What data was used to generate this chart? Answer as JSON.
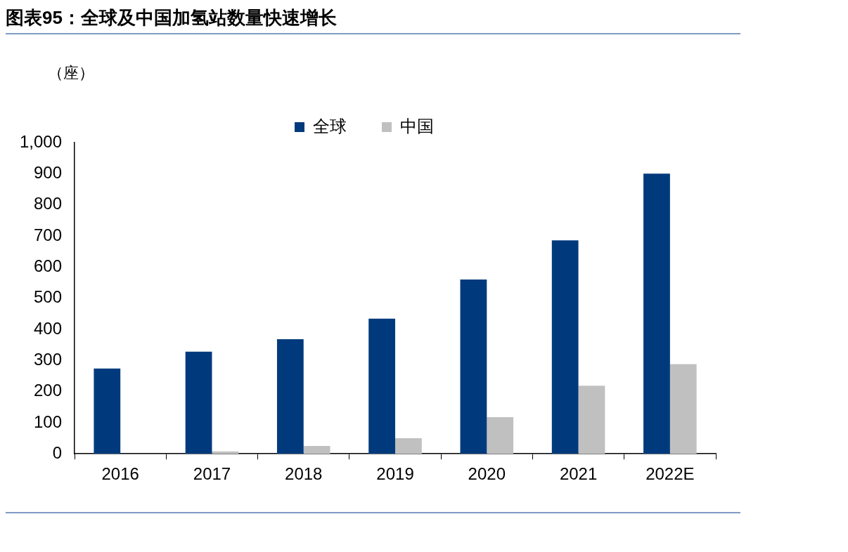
{
  "chart_data": {
    "type": "bar",
    "title": "图表95：全球及中国加氢站数量快速增长",
    "ylabel": "（座）",
    "categories": [
      "2016",
      "2017",
      "2018",
      "2019",
      "2020",
      "2021",
      "2022E"
    ],
    "series": [
      {
        "name": "全球",
        "color": "#003a7c",
        "values": [
          274,
          328,
          368,
          434,
          560,
          686,
          900
        ]
      },
      {
        "name": "中国",
        "color": "#c0c0c0",
        "values": [
          0,
          8,
          25,
          50,
          118,
          219,
          288
        ]
      }
    ],
    "ylim": [
      0,
      1000
    ],
    "yticks": [
      0,
      100,
      200,
      300,
      400,
      500,
      600,
      700,
      800,
      900,
      {
        "value": 1000,
        "label": "1,000"
      }
    ],
    "grid": false,
    "legend": "top"
  }
}
